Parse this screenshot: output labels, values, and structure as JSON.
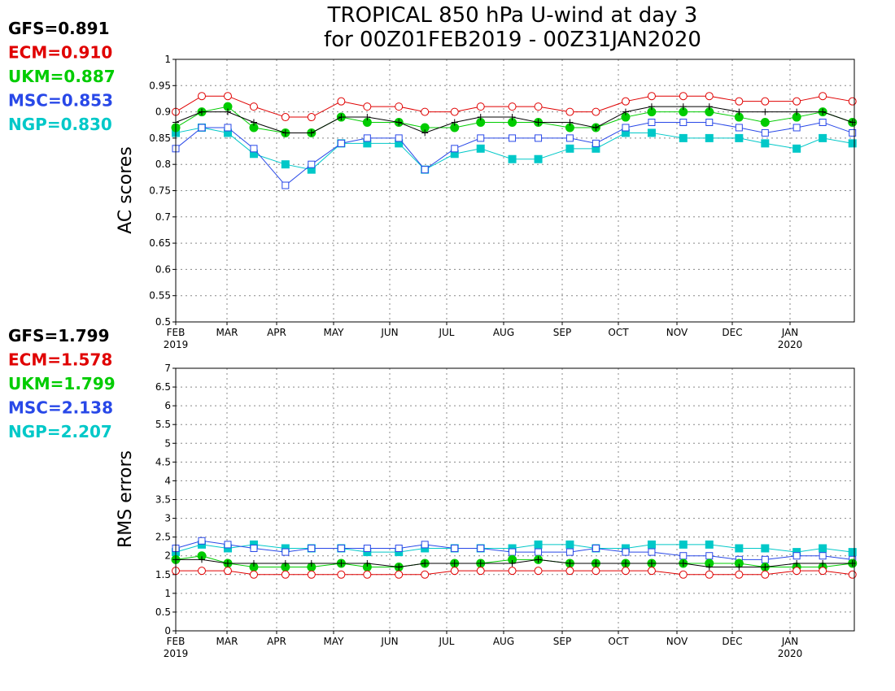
{
  "title": {
    "line1": "TROPICAL 850 hPa U-wind at day 3",
    "line2": "for 00Z01FEB2019 - 00Z31JAN2020"
  },
  "colors": {
    "GFS": "#000000",
    "ECM": "#e00000",
    "UKM": "#00cc00",
    "MSC": "#2848e8",
    "NGP": "#00c8c8"
  },
  "chart_data": [
    {
      "type": "line",
      "panel": "top",
      "ylabel": "AC scores",
      "ylim": [
        0.5,
        1.0
      ],
      "yticks": [
        "0.5",
        "0.55",
        "0.6",
        "0.65",
        "0.7",
        "0.75",
        "0.8",
        "0.85",
        "0.9",
        "0.95",
        "1"
      ],
      "xticks": [
        "FEB",
        "MAR",
        "APR",
        "MAY",
        "JUN",
        "JUL",
        "AUG",
        "SEP",
        "OCT",
        "NOV",
        "DEC",
        "JAN"
      ],
      "xtick_years": [
        "2019",
        "2020"
      ],
      "grid": true,
      "legend_placement": "left",
      "legend": [
        {
          "label": "GFS=0.891",
          "series": "GFS"
        },
        {
          "label": "ECM=0.910",
          "series": "ECM"
        },
        {
          "label": "UKM=0.887",
          "series": "UKM"
        },
        {
          "label": "MSC=0.853",
          "series": "MSC"
        },
        {
          "label": "NGP=0.830",
          "series": "NGP"
        }
      ],
      "x": [
        "2019-02-01",
        "2019-02-15",
        "2019-03-01",
        "2019-03-15",
        "2019-04-01",
        "2019-04-15",
        "2019-05-01",
        "2019-05-15",
        "2019-06-01",
        "2019-06-15",
        "2019-07-01",
        "2019-07-15",
        "2019-08-01",
        "2019-08-15",
        "2019-09-01",
        "2019-09-15",
        "2019-10-01",
        "2019-10-15",
        "2019-11-01",
        "2019-11-15",
        "2019-12-01",
        "2019-12-15",
        "2020-01-01",
        "2020-01-15",
        "2020-01-31"
      ],
      "series": [
        {
          "name": "GFS",
          "marker": "plus",
          "values": [
            0.88,
            0.9,
            0.9,
            0.88,
            0.86,
            0.86,
            0.89,
            0.89,
            0.88,
            0.86,
            0.88,
            0.89,
            0.89,
            0.88,
            0.88,
            0.87,
            0.9,
            0.91,
            0.91,
            0.91,
            0.9,
            0.9,
            0.9,
            0.9,
            0.88
          ]
        },
        {
          "name": "ECM",
          "marker": "circle-open",
          "values": [
            0.9,
            0.93,
            0.93,
            0.91,
            0.89,
            0.89,
            0.92,
            0.91,
            0.91,
            0.9,
            0.9,
            0.91,
            0.91,
            0.91,
            0.9,
            0.9,
            0.92,
            0.93,
            0.93,
            0.93,
            0.92,
            0.92,
            0.92,
            0.93,
            0.92
          ]
        },
        {
          "name": "UKM",
          "marker": "circle-filled",
          "values": [
            0.87,
            0.9,
            0.91,
            0.87,
            0.86,
            0.86,
            0.89,
            0.88,
            0.88,
            0.87,
            0.87,
            0.88,
            0.88,
            0.88,
            0.87,
            0.87,
            0.89,
            0.9,
            0.9,
            0.9,
            0.89,
            0.88,
            0.89,
            0.9,
            0.88
          ]
        },
        {
          "name": "MSC",
          "marker": "square-open",
          "values": [
            0.83,
            0.87,
            0.87,
            0.83,
            0.76,
            0.8,
            0.84,
            0.85,
            0.85,
            0.79,
            0.83,
            0.85,
            0.85,
            0.85,
            0.85,
            0.84,
            0.87,
            0.88,
            0.88,
            0.88,
            0.87,
            0.86,
            0.87,
            0.88,
            0.86
          ]
        },
        {
          "name": "NGP",
          "marker": "square-filled",
          "values": [
            0.86,
            0.87,
            0.86,
            0.82,
            0.8,
            0.79,
            0.84,
            0.84,
            0.84,
            0.79,
            0.82,
            0.83,
            0.81,
            0.81,
            0.83,
            0.83,
            0.86,
            0.86,
            0.85,
            0.85,
            0.85,
            0.84,
            0.83,
            0.85,
            0.84
          ]
        }
      ]
    },
    {
      "type": "line",
      "panel": "bottom",
      "ylabel": "RMS errors",
      "ylim": [
        0,
        7
      ],
      "yticks": [
        "0",
        "0.5",
        "1",
        "1.5",
        "2",
        "2.5",
        "3",
        "3.5",
        "4",
        "4.5",
        "5",
        "5.5",
        "6",
        "6.5",
        "7"
      ],
      "xticks": [
        "FEB",
        "MAR",
        "APR",
        "MAY",
        "JUN",
        "JUL",
        "AUG",
        "SEP",
        "OCT",
        "NOV",
        "DEC",
        "JAN"
      ],
      "xtick_years": [
        "2019",
        "2020"
      ],
      "grid": true,
      "legend_placement": "left",
      "legend": [
        {
          "label": "GFS=1.799",
          "series": "GFS"
        },
        {
          "label": "ECM=1.578",
          "series": "ECM"
        },
        {
          "label": "UKM=1.799",
          "series": "UKM"
        },
        {
          "label": "MSC=2.138",
          "series": "MSC"
        },
        {
          "label": "NGP=2.207",
          "series": "NGP"
        }
      ],
      "x": [
        "2019-02-01",
        "2019-02-15",
        "2019-03-01",
        "2019-03-15",
        "2019-04-01",
        "2019-04-15",
        "2019-05-01",
        "2019-05-15",
        "2019-06-01",
        "2019-06-15",
        "2019-07-01",
        "2019-07-15",
        "2019-08-01",
        "2019-08-15",
        "2019-09-01",
        "2019-09-15",
        "2019-10-01",
        "2019-10-15",
        "2019-11-01",
        "2019-11-15",
        "2019-12-01",
        "2019-12-15",
        "2020-01-01",
        "2020-01-15",
        "2020-01-31"
      ],
      "series": [
        {
          "name": "GFS",
          "marker": "plus",
          "values": [
            1.9,
            1.9,
            1.8,
            1.8,
            1.8,
            1.8,
            1.8,
            1.8,
            1.7,
            1.8,
            1.8,
            1.8,
            1.8,
            1.9,
            1.8,
            1.8,
            1.8,
            1.8,
            1.8,
            1.7,
            1.7,
            1.7,
            1.8,
            1.8,
            1.8
          ]
        },
        {
          "name": "ECM",
          "marker": "circle-open",
          "values": [
            1.6,
            1.6,
            1.6,
            1.5,
            1.5,
            1.5,
            1.5,
            1.5,
            1.5,
            1.5,
            1.6,
            1.6,
            1.6,
            1.6,
            1.6,
            1.6,
            1.6,
            1.6,
            1.5,
            1.5,
            1.5,
            1.5,
            1.6,
            1.6,
            1.5
          ]
        },
        {
          "name": "UKM",
          "marker": "circle-filled",
          "values": [
            1.9,
            2.0,
            1.8,
            1.7,
            1.7,
            1.7,
            1.8,
            1.7,
            1.7,
            1.8,
            1.8,
            1.8,
            1.9,
            1.9,
            1.8,
            1.8,
            1.8,
            1.8,
            1.8,
            1.8,
            1.8,
            1.7,
            1.7,
            1.7,
            1.8
          ]
        },
        {
          "name": "MSC",
          "marker": "square-open",
          "values": [
            2.2,
            2.4,
            2.3,
            2.2,
            2.1,
            2.2,
            2.2,
            2.2,
            2.2,
            2.3,
            2.2,
            2.2,
            2.1,
            2.1,
            2.1,
            2.2,
            2.1,
            2.1,
            2.0,
            2.0,
            1.9,
            1.9,
            2.0,
            2.0,
            1.9
          ]
        },
        {
          "name": "NGP",
          "marker": "square-filled",
          "values": [
            2.1,
            2.3,
            2.2,
            2.3,
            2.2,
            2.2,
            2.2,
            2.1,
            2.1,
            2.2,
            2.2,
            2.2,
            2.2,
            2.3,
            2.3,
            2.2,
            2.2,
            2.3,
            2.3,
            2.3,
            2.2,
            2.2,
            2.1,
            2.2,
            2.1
          ]
        }
      ]
    }
  ]
}
